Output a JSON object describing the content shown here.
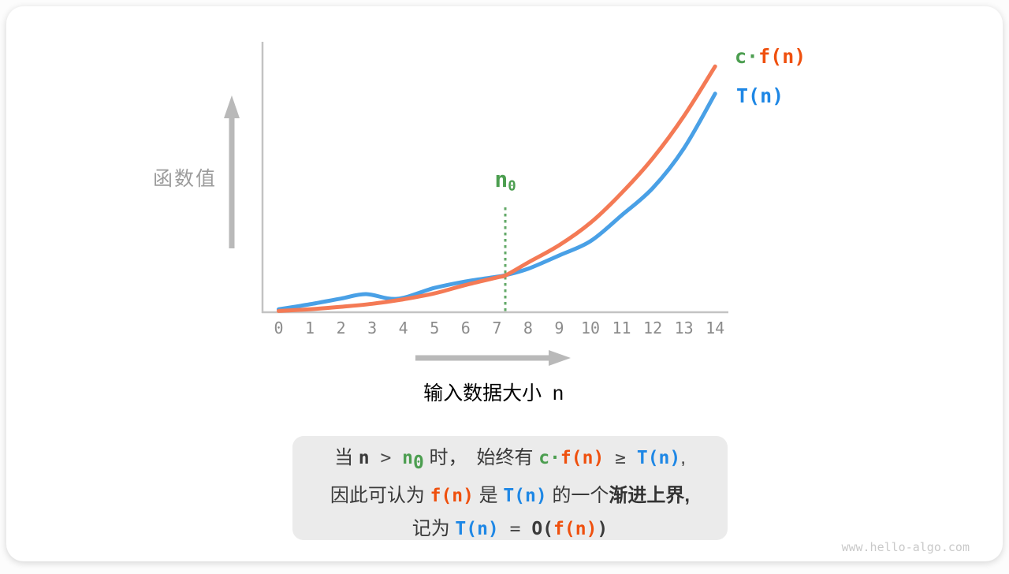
{
  "colors": {
    "green": "#4c9e50",
    "orange_text": "#ef500e",
    "blue_text": "#1e87e5",
    "orange_curve": "#f47a55",
    "blue_curve": "#49a0e6",
    "axis_gray": "#c3c3c3",
    "arrow_gray": "#b9b9b9",
    "tick_gray": "#8b8b8b",
    "label_gray": "#9c9c9c",
    "text_dark": "#3a3a3a",
    "caption_bg": "#ebebeb",
    "dotted_green": "#63a968"
  },
  "chart_data": {
    "type": "line",
    "title": "",
    "xlabel": "输入数据大小 n",
    "ylabel": "函数值",
    "x_ticks": [
      "0",
      "1",
      "2",
      "3",
      "4",
      "5",
      "6",
      "7",
      "8",
      "9",
      "10",
      "11",
      "12",
      "13",
      "14"
    ],
    "xlim": [
      0,
      14
    ],
    "y_axis_numeric_labels": false,
    "ylim_arbitrary_units": [
      0,
      100
    ],
    "grid": false,
    "legend_position": "right-of-curve-ends",
    "annotation": {
      "label_base": "n",
      "label_sub": "0",
      "x": 7.3,
      "style": "vertical-dotted-green-line"
    },
    "series": [
      {
        "name": "c·f(n)",
        "color": "#f47a55",
        "points": [
          [
            0,
            0.5
          ],
          [
            1,
            1.2
          ],
          [
            2,
            2.2
          ],
          [
            3,
            3.4
          ],
          [
            4,
            5.2
          ],
          [
            5,
            7.6
          ],
          [
            6,
            11.0
          ],
          [
            7,
            14.0
          ],
          [
            7.3,
            15.0
          ],
          [
            8,
            20.0
          ],
          [
            9,
            27.0
          ],
          [
            10,
            36.0
          ],
          [
            11,
            48.0
          ],
          [
            12,
            62.0
          ],
          [
            13,
            79.0
          ],
          [
            14,
            99.0
          ]
        ]
      },
      {
        "name": "T(n)",
        "color": "#49a0e6",
        "points": [
          [
            0,
            1.2
          ],
          [
            1,
            3.2
          ],
          [
            2,
            5.5
          ],
          [
            2.8,
            7.3
          ],
          [
            3.8,
            5.4
          ],
          [
            5,
            9.8
          ],
          [
            6,
            12.4
          ],
          [
            7,
            14.3
          ],
          [
            7.3,
            15.0
          ],
          [
            8,
            17.5
          ],
          [
            9,
            22.9
          ],
          [
            10,
            28.6
          ],
          [
            11,
            39.0
          ],
          [
            12,
            50.0
          ],
          [
            13,
            66.0
          ],
          [
            14,
            88.0
          ]
        ]
      }
    ]
  },
  "axis_labels": {
    "y": "函数值",
    "x_segments": [
      {
        "t": "输入数据大小  ",
        "s": "axzh"
      },
      {
        "t": "n",
        "s": "axm"
      }
    ]
  },
  "legend": {
    "cf": [
      {
        "t": "c·",
        "s": "g"
      },
      {
        "t": "f(n)",
        "s": "o"
      }
    ],
    "t": [
      {
        "t": "T(n)",
        "s": "b"
      }
    ]
  },
  "n0_chart_label": [
    {
      "t": "n",
      "s": "g"
    },
    {
      "t": "0",
      "s": "g",
      "sub": true
    }
  ],
  "caption": {
    "lines": [
      [
        {
          "t": "当 ",
          "s": "zh"
        },
        {
          "t": "n",
          "s": "m"
        },
        {
          "t": " > ",
          "s": "op"
        },
        {
          "t": "n",
          "s": "g"
        },
        {
          "t": "0",
          "s": "g",
          "sub": true
        },
        {
          "t": " 时，",
          "s": "zh"
        },
        {
          "t": "　",
          "s": "zh"
        },
        {
          "t": "始终有 ",
          "s": "zh"
        },
        {
          "t": "c·",
          "s": "g"
        },
        {
          "t": "f(n)",
          "s": "o"
        },
        {
          "t": " ≥ ",
          "s": "op"
        },
        {
          "t": "T(n)",
          "s": "b"
        },
        {
          "t": ",",
          "s": "zh"
        }
      ],
      [
        {
          "t": "因此可认为 ",
          "s": "zh"
        },
        {
          "t": "f(n)",
          "s": "o"
        },
        {
          "t": " 是 ",
          "s": "zh"
        },
        {
          "t": "T(n)",
          "s": "b"
        },
        {
          "t": " 的一个",
          "s": "zh"
        },
        {
          "t": "渐进上界",
          "s": "zhb"
        },
        {
          "t": ",",
          "s": "zhb"
        }
      ],
      [
        {
          "t": "记为 ",
          "s": "zh"
        },
        {
          "t": "T(n)",
          "s": "b"
        },
        {
          "t": " = ",
          "s": "op"
        },
        {
          "t": "O(",
          "s": "m"
        },
        {
          "t": "f(n)",
          "s": "o"
        },
        {
          "t": ")",
          "s": "m"
        }
      ]
    ]
  },
  "watermark": "www.hello-algo.com"
}
